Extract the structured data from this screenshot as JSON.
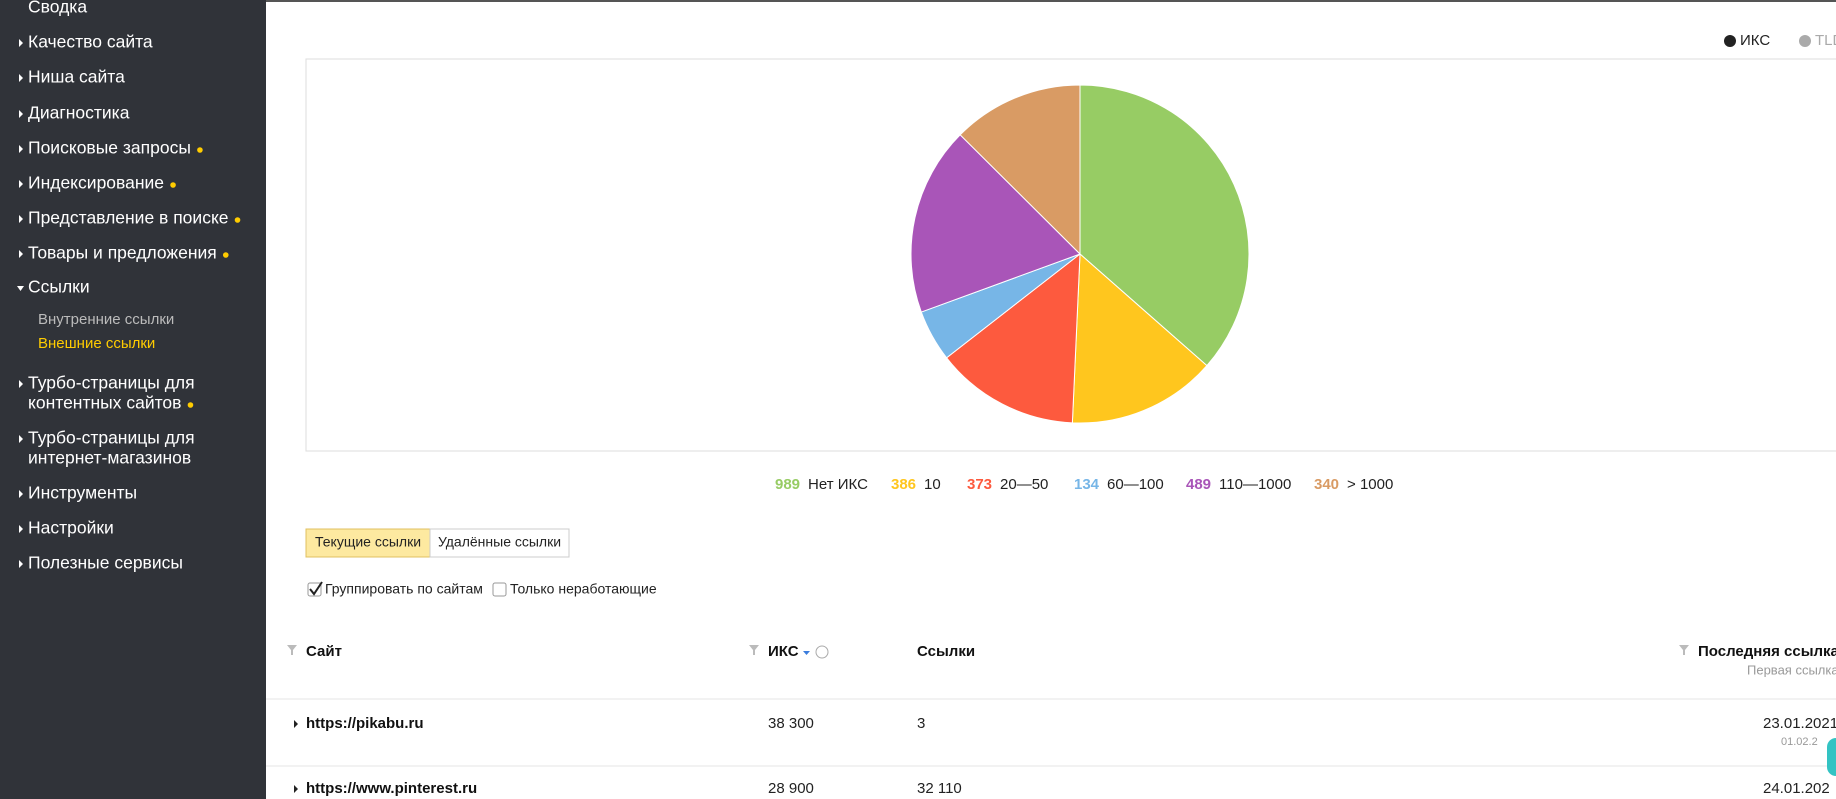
{
  "sidebar": {
    "items": [
      {
        "label": [
          "Сводка"
        ]
      },
      {
        "label": [
          "Качество сайта"
        ]
      },
      {
        "label": [
          "Ниша сайта"
        ]
      },
      {
        "label": [
          "Диагностика"
        ]
      },
      {
        "label": [
          "Поисковые запросы"
        ],
        "dot": true
      },
      {
        "label": [
          "Индексирование"
        ],
        "dot": true
      },
      {
        "label": [
          "Представление в поиске"
        ],
        "dot": true
      },
      {
        "label": [
          "Товары и предложения"
        ],
        "dot": true
      },
      {
        "label": [
          "Ссылки"
        ],
        "expanded": true,
        "children": [
          "Внутренние ссылки",
          "Внешние ссылки"
        ],
        "active_child": 1
      },
      {
        "label": [
          "Турбо-страницы для",
          "контентных сайтов"
        ],
        "dot": true
      },
      {
        "label": [
          "Турбо-страницы для",
          "интернет-магазинов"
        ]
      },
      {
        "label": [
          "Инструменты"
        ]
      },
      {
        "label": [
          "Настройки"
        ]
      },
      {
        "label": [
          "Полезные сервисы"
        ]
      }
    ]
  },
  "view_switch": [
    "ИКС",
    "TLD"
  ],
  "chart_data": {
    "type": "pie",
    "categories": [
      "Нет ИКС",
      "10",
      "20—50",
      "60—100",
      "110—1000",
      "> 1000"
    ],
    "values": [
      989,
      386,
      373,
      134,
      489,
      340
    ],
    "colors": [
      "#97cc64",
      "#ffc61e",
      "#fd5a3e",
      "#77b6e7",
      "#a955b8",
      "#d99b64"
    ]
  },
  "tabs": [
    "Текущие ссылки",
    "Удалённые ссылки"
  ],
  "checkboxes": [
    {
      "label": "Группировать по сайтам",
      "checked": true
    },
    {
      "label": "Только неработающие",
      "checked": false
    }
  ],
  "table": {
    "columns": [
      "Сайт",
      "ИКС",
      "Ссылки",
      "Последняя ссылка"
    ],
    "sub_column": "Первая ссылка",
    "rows": [
      [
        "https://pikabu.ru",
        "38 300",
        "3",
        "23.01.2021",
        "01.02.2"
      ],
      [
        "https://www.pinterest.ru",
        "28 900",
        "32 110",
        "24.01.202"
      ]
    ]
  }
}
